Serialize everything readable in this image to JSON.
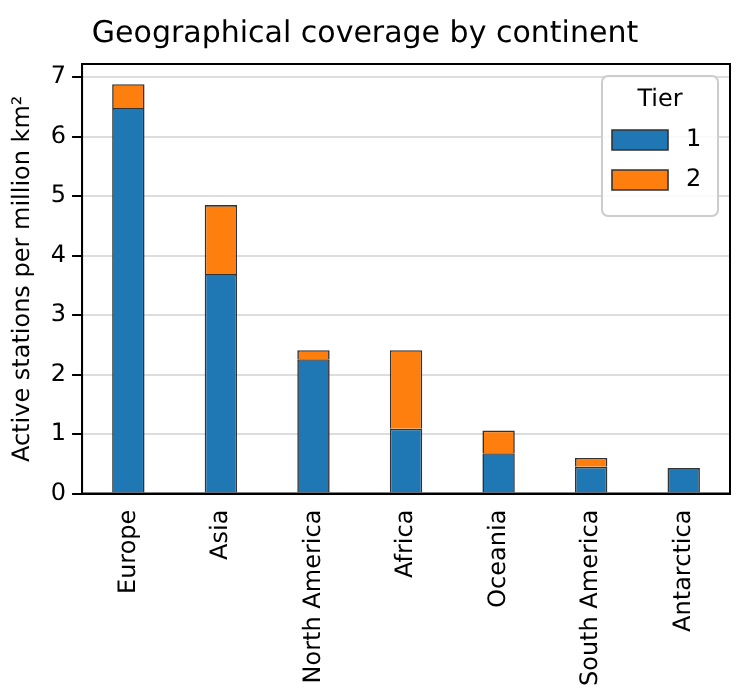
{
  "chart_data": {
    "type": "bar",
    "title": "Geographical coverage by continent",
    "ylabel": "Active stations per million km²",
    "legend_title": "Tier",
    "categories": [
      "Europe",
      "Asia",
      "North America",
      "Africa",
      "Oceania",
      "South America",
      "Antarctica"
    ],
    "stacked": true,
    "series": [
      {
        "name": "1",
        "color": "#1f77b4",
        "values": [
          6.48,
          3.69,
          2.26,
          1.09,
          0.68,
          0.45,
          0.43
        ]
      },
      {
        "name": "2",
        "color": "#ff7f0e",
        "values": [
          0.4,
          1.16,
          0.15,
          1.32,
          0.38,
          0.15,
          0
        ]
      }
    ],
    "ylim": [
      0,
      7.22
    ],
    "yticks": [
      0,
      1,
      2,
      3,
      4,
      5,
      6,
      7
    ],
    "grid": "y",
    "legend": "top right"
  }
}
